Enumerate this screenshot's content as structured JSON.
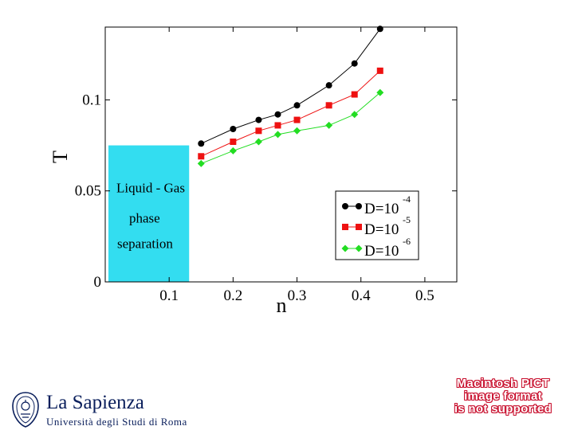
{
  "chart_data": {
    "type": "line",
    "xlabel": "n",
    "ylabel": "T",
    "xlim": [
      0,
      0.55
    ],
    "ylim": [
      0,
      0.14
    ],
    "x_ticks": [
      0.1,
      0.2,
      0.3,
      0.4,
      0.5
    ],
    "x_tick_labels": [
      "0.1",
      "0.2",
      "0.3",
      "0.4",
      "0.5"
    ],
    "y_ticks": [
      0,
      0.05,
      0.1
    ],
    "y_tick_labels": [
      "0",
      "0.05",
      "0.1"
    ],
    "region": {
      "label_lines": [
        "Liquid - Gas",
        "phase",
        "separation"
      ],
      "x_range": [
        0,
        0.13
      ],
      "y_range": [
        0,
        0.075
      ],
      "color": "#33ddf0"
    },
    "series": [
      {
        "name": "D=10-4",
        "base": "D=10",
        "exponent": "-4",
        "color": "#000000",
        "marker": "circle",
        "x": [
          0.15,
          0.2,
          0.24,
          0.27,
          0.3,
          0.35,
          0.39,
          0.43
        ],
        "y": [
          0.076,
          0.084,
          0.089,
          0.092,
          0.097,
          0.108,
          0.12,
          0.139
        ]
      },
      {
        "name": "D=10-5",
        "base": "D=10",
        "exponent": "-5",
        "color": "#ee1111",
        "marker": "square",
        "x": [
          0.15,
          0.2,
          0.24,
          0.27,
          0.3,
          0.35,
          0.39,
          0.43
        ],
        "y": [
          0.069,
          0.077,
          0.083,
          0.086,
          0.089,
          0.097,
          0.103,
          0.116
        ]
      },
      {
        "name": "D=10-6",
        "base": "D=10",
        "exponent": "-6",
        "color": "#22dd22",
        "marker": "diamond",
        "x": [
          0.15,
          0.2,
          0.24,
          0.27,
          0.3,
          0.35,
          0.39,
          0.43
        ],
        "y": [
          0.065,
          0.072,
          0.077,
          0.081,
          0.083,
          0.086,
          0.092,
          0.104
        ]
      }
    ]
  },
  "logo": {
    "title": "La Sapienza",
    "subtitle": "Università degli Studi di Roma"
  },
  "placeholder_notice": {
    "lines": [
      "Macintosh PICT",
      "image format",
      "is not supported"
    ],
    "color": "#c8102e"
  }
}
